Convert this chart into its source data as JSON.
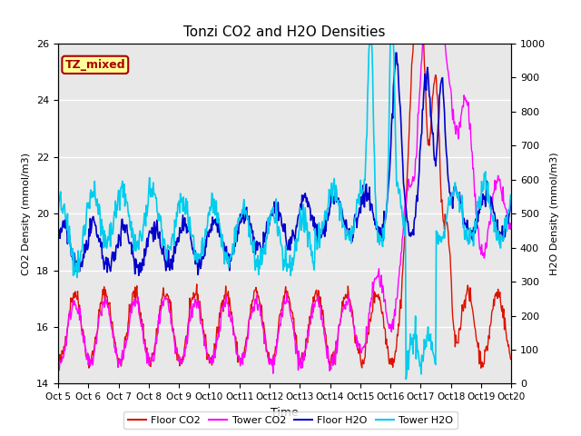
{
  "title": "Tonzi CO2 and H2O Densities",
  "xlabel": "Time",
  "ylabel_left": "CO2 Density (mmol/m3)",
  "ylabel_right": "H2O Density (mmol/m3)",
  "ylim_left": [
    14,
    26
  ],
  "ylim_right": [
    0,
    1000
  ],
  "yticks_left": [
    14,
    16,
    18,
    20,
    22,
    24,
    26
  ],
  "yticks_right": [
    0,
    100,
    200,
    300,
    400,
    500,
    600,
    700,
    800,
    900,
    1000
  ],
  "xtick_labels": [
    "Oct 5",
    "Oct 6",
    "Oct 7",
    "Oct 8",
    "Oct 9",
    "Oct 10",
    "Oct 11",
    "Oct 12",
    "Oct 13",
    "Oct 14",
    "Oct 15",
    "Oct 16",
    "Oct 17",
    "Oct 18",
    "Oct 19",
    "Oct 20"
  ],
  "annotation_text": "TZ_mixed",
  "annotation_color": "#aa0000",
  "annotation_bg": "#ffff99",
  "colors": {
    "floor_co2": "#dd1100",
    "tower_co2": "#ff00ff",
    "floor_h2o": "#0000cc",
    "tower_h2o": "#00ccee"
  },
  "legend_labels": [
    "Floor CO2",
    "Tower CO2",
    "Floor H2O",
    "Tower H2O"
  ],
  "background_color": "#e8e8e8",
  "fig_background": "#ffffff",
  "n_days": 15,
  "pts_per_day": 48
}
